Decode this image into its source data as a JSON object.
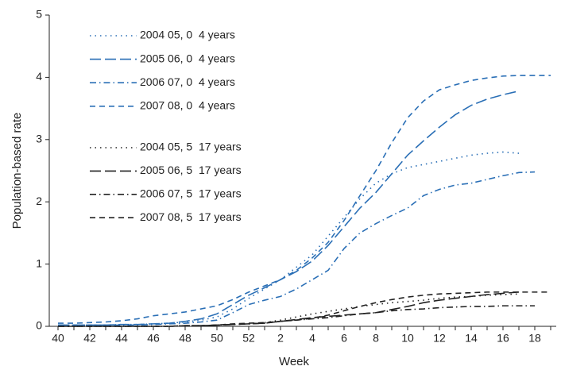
{
  "chart_data": {
    "type": "line",
    "x_label": "Week",
    "y_label": "Population-based rate",
    "categories": [
      40,
      null,
      42,
      null,
      44,
      null,
      46,
      null,
      48,
      null,
      50,
      null,
      52,
      null,
      2,
      null,
      4,
      null,
      6,
      null,
      8,
      null,
      10,
      null,
      12,
      null,
      14,
      null,
      16,
      null,
      18,
      null
    ],
    "ylim": [
      0,
      5
    ],
    "yticks": [
      0,
      1,
      2,
      3,
      4,
      5
    ],
    "grid": false,
    "legend": "upper left",
    "series": [
      {
        "name": "2004 05, 0  4 years",
        "color": "#2a6fb6",
        "dash": "dotted",
        "values": [
          0.02,
          0.02,
          0.02,
          0.02,
          0.03,
          0.03,
          0.04,
          0.05,
          0.07,
          0.1,
          0.15,
          0.28,
          0.45,
          0.6,
          0.75,
          0.95,
          1.15,
          1.45,
          1.75,
          2.05,
          2.3,
          2.45,
          2.55,
          2.6,
          2.65,
          2.7,
          2.75,
          2.78,
          2.8,
          2.78,
          null,
          null
        ]
      },
      {
        "name": "2005 06, 0  4 years",
        "color": "#2a6fb6",
        "dash": "longdash",
        "values": [
          0.02,
          0.02,
          0.02,
          0.02,
          0.03,
          0.03,
          0.04,
          0.05,
          0.08,
          0.12,
          0.2,
          0.35,
          0.5,
          0.62,
          0.75,
          0.88,
          1.05,
          1.3,
          1.6,
          1.9,
          2.15,
          2.45,
          2.75,
          2.98,
          3.2,
          3.4,
          3.55,
          3.65,
          3.72,
          3.78,
          null,
          null
        ]
      },
      {
        "name": "2006 07, 0  4 years",
        "color": "#2a6fb6",
        "dash": "dashdot",
        "values": [
          0.02,
          0.02,
          0.02,
          0.02,
          0.02,
          0.02,
          0.03,
          0.04,
          0.05,
          0.07,
          0.1,
          0.22,
          0.35,
          0.42,
          0.48,
          0.6,
          0.75,
          0.9,
          1.25,
          1.5,
          1.65,
          1.78,
          1.9,
          2.1,
          2.2,
          2.27,
          2.3,
          2.36,
          2.42,
          2.47,
          2.48,
          null
        ]
      },
      {
        "name": "2007 08, 0  4 years",
        "color": "#2a6fb6",
        "dash": "dashed",
        "values": [
          0.05,
          0.05,
          0.06,
          0.07,
          0.09,
          0.12,
          0.17,
          0.2,
          0.23,
          0.28,
          0.33,
          0.43,
          0.55,
          0.65,
          0.75,
          0.9,
          1.1,
          1.35,
          1.7,
          2.1,
          2.5,
          2.95,
          3.35,
          3.62,
          3.8,
          3.88,
          3.95,
          3.99,
          4.02,
          4.03,
          4.03,
          4.03
        ]
      },
      {
        "name": "2004 05, 5  17 years",
        "color": "#222222",
        "dash": "dotted",
        "values": [
          0,
          0,
          0,
          0,
          0,
          0,
          0,
          0,
          0.01,
          0.01,
          0.02,
          0.03,
          0.04,
          0.06,
          0.1,
          0.15,
          0.2,
          0.24,
          0.28,
          0.32,
          0.35,
          0.38,
          0.4,
          0.42,
          0.45,
          0.47,
          0.48,
          0.5,
          0.51,
          0.52,
          null,
          null
        ]
      },
      {
        "name": "2005 06, 5  17 years",
        "color": "#222222",
        "dash": "longdash",
        "values": [
          0,
          0,
          0,
          0,
          0,
          0,
          0,
          0,
          0.01,
          0.01,
          0.02,
          0.03,
          0.04,
          0.05,
          0.08,
          0.11,
          0.14,
          0.16,
          0.18,
          0.2,
          0.22,
          0.27,
          0.32,
          0.38,
          0.42,
          0.45,
          0.48,
          0.51,
          0.53,
          0.55,
          null,
          null
        ]
      },
      {
        "name": "2006 07, 5  17 years",
        "color": "#222222",
        "dash": "dashdot",
        "values": [
          0,
          0,
          0,
          0,
          0,
          0,
          0,
          0,
          0.01,
          0.01,
          0.02,
          0.03,
          0.04,
          0.05,
          0.08,
          0.1,
          0.12,
          0.14,
          0.17,
          0.2,
          0.22,
          0.25,
          0.27,
          0.28,
          0.3,
          0.31,
          0.32,
          0.32,
          0.33,
          0.33,
          0.33,
          null
        ]
      },
      {
        "name": "2007 08, 5  17 years",
        "color": "#222222",
        "dash": "dashed",
        "values": [
          0,
          0,
          0,
          0,
          0,
          0,
          0,
          0,
          0.01,
          0.01,
          0.02,
          0.04,
          0.05,
          0.06,
          0.08,
          0.1,
          0.13,
          0.18,
          0.25,
          0.32,
          0.38,
          0.43,
          0.47,
          0.5,
          0.52,
          0.53,
          0.54,
          0.55,
          0.55,
          0.55,
          0.55,
          0.55
        ]
      }
    ]
  }
}
